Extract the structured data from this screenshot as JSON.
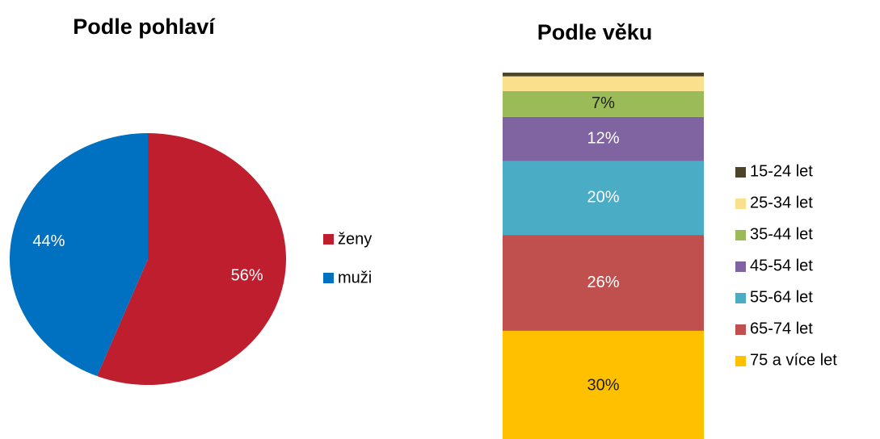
{
  "chart_data": [
    {
      "type": "pie",
      "title": "Podle pohlaví",
      "categories": [
        "ženy",
        "muži"
      ],
      "values": [
        56,
        44
      ],
      "value_labels": [
        "56%",
        "44%"
      ],
      "colors": [
        "#be1e2d",
        "#0070c0"
      ]
    },
    {
      "type": "stacked_bar",
      "title": "Podle věku",
      "series": [
        {
          "name": "75 a více let",
          "color": "#ffc000",
          "values": [
            30
          ],
          "value_labels": [
            "30%"
          ]
        },
        {
          "name": "65-74 let",
          "color": "#c0504d",
          "values": [
            26
          ],
          "value_labels": [
            "26%"
          ]
        },
        {
          "name": "55-64 let",
          "color": "#4bacc6",
          "values": [
            20
          ],
          "value_labels": [
            "20%"
          ]
        },
        {
          "name": "45-54 let",
          "color": "#8064a2",
          "values": [
            12
          ],
          "value_labels": [
            "12%"
          ]
        },
        {
          "name": "35-44 let",
          "color": "#9bbb59",
          "values": [
            7
          ],
          "value_labels": [
            "7%"
          ]
        },
        {
          "name": "25-34 let",
          "color": "#fae08c",
          "values": [
            4
          ],
          "value_labels": [
            null
          ]
        },
        {
          "name": "15-24 let",
          "color": "#4a452a",
          "values": [
            1
          ],
          "value_labels": [
            null
          ]
        }
      ],
      "ylim": [
        0,
        100
      ]
    }
  ]
}
